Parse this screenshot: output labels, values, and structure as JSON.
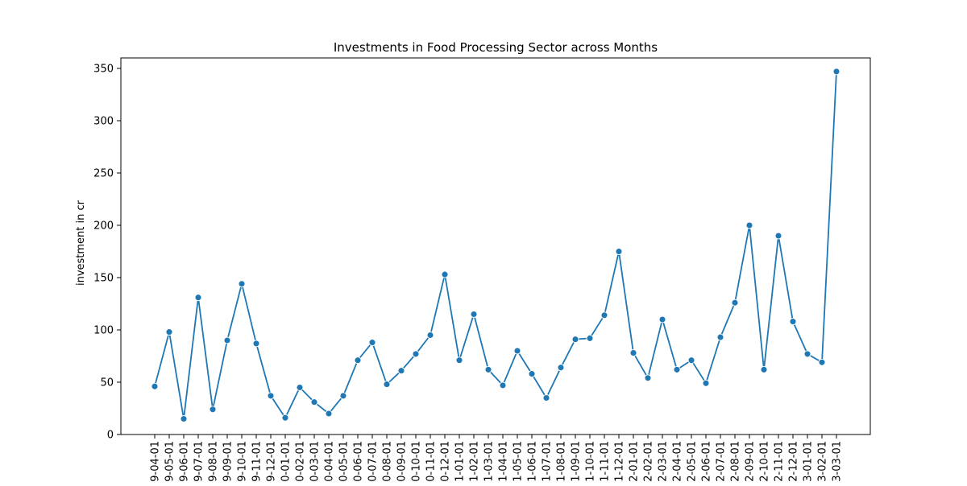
{
  "chart_data": {
    "type": "line",
    "title": "Investments in Food Processing Sector across Months",
    "xlabel": "",
    "ylabel": "investment in cr",
    "ylim": [
      0,
      360
    ],
    "yticks": [
      0,
      50,
      100,
      150,
      200,
      250,
      300,
      350
    ],
    "grid": false,
    "legend": null,
    "line_color": "#1f77b4",
    "categories": [
      "9-04-01",
      "9-05-01",
      "9-06-01",
      "9-07-01",
      "9-08-01",
      "9-09-01",
      "9-10-01",
      "9-11-01",
      "9-12-01",
      "0-01-01",
      "0-02-01",
      "0-03-01",
      "0-04-01",
      "0-05-01",
      "0-06-01",
      "0-07-01",
      "0-08-01",
      "0-09-01",
      "0-10-01",
      "0-11-01",
      "0-12-01",
      "1-01-01",
      "1-02-01",
      "1-03-01",
      "1-04-01",
      "1-05-01",
      "1-06-01",
      "1-07-01",
      "1-08-01",
      "1-09-01",
      "1-10-01",
      "1-11-01",
      "1-12-01",
      "2-01-01",
      "2-02-01",
      "2-03-01",
      "2-04-01",
      "2-05-01",
      "2-06-01",
      "2-07-01",
      "2-08-01",
      "2-09-01",
      "2-10-01",
      "2-11-01",
      "2-12-01",
      "3-01-01",
      "3-02-01",
      "3-03-01"
    ],
    "values": [
      46,
      98,
      15,
      131,
      24,
      90,
      144,
      87,
      37,
      16,
      45,
      31,
      20,
      37,
      71,
      88,
      48,
      61,
      77,
      95,
      153,
      71,
      115,
      62,
      47,
      80,
      58,
      35,
      64,
      91,
      92,
      114,
      175,
      78,
      54,
      110,
      62,
      71,
      49,
      93,
      126,
      200,
      62,
      190,
      108,
      77,
      69,
      347
    ]
  }
}
